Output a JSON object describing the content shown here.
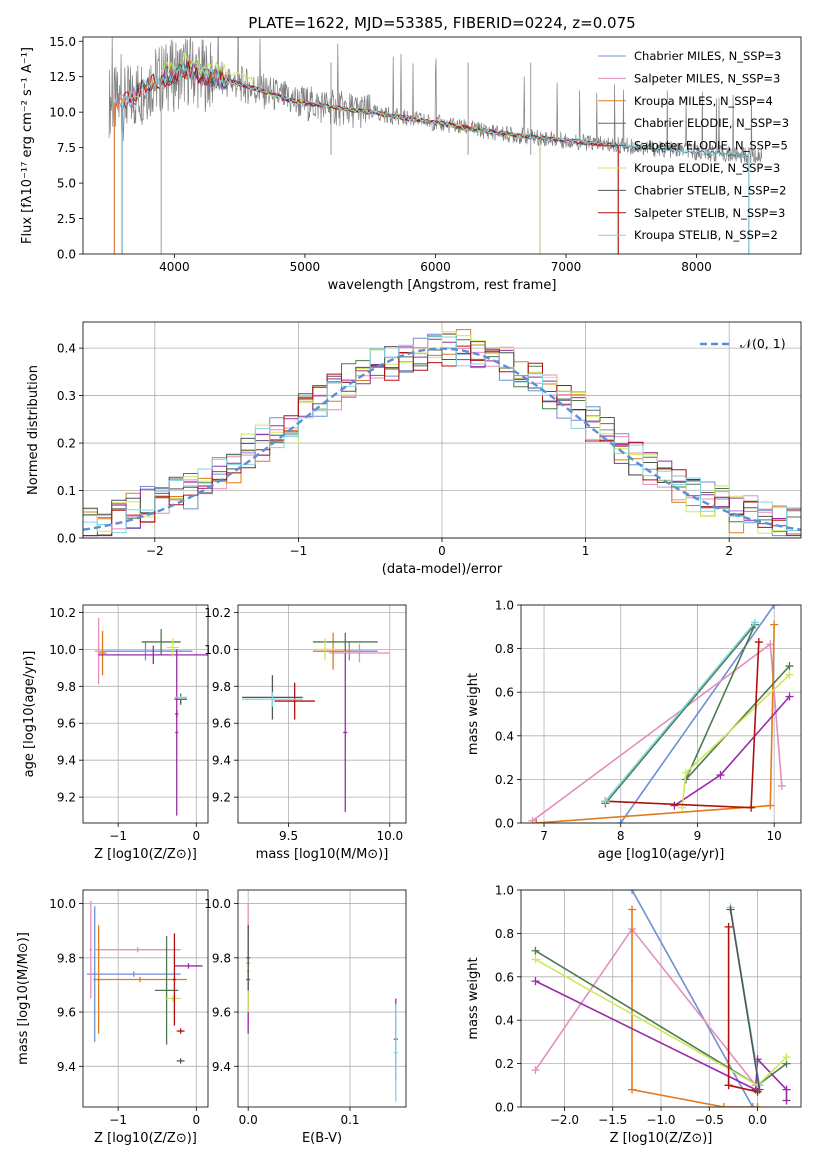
{
  "colors": {
    "chabrier_miles": "#6f8ed8",
    "salpeter_miles": "#e48fbe",
    "kroupa_miles": "#e07b1e",
    "chabrier_elodie": "#4f7a4f",
    "salpeter_elodie": "#9a2aa8",
    "kroupa_elodie": "#cde85a",
    "chabrier_stelib": "#555555",
    "salpeter_stelib": "#b01010",
    "kroupa_stelib": "#7fd6e0",
    "gauss": "#5b8fd6",
    "spectrum": "#808080"
  },
  "chart_data": [
    {
      "id": "spectrum",
      "type": "line",
      "title": "PLATE=1622, MJD=53385, FIBERID=0224, z=0.075",
      "xlabel": "wavelength [Angstrom, rest frame]",
      "ylabel": "Flux [fλ10⁻¹⁷ erg cm⁻² s⁻¹ A⁻¹]",
      "xlim": [
        3300,
        8800
      ],
      "ylim": [
        0,
        15.3
      ],
      "xticks": [
        "4000",
        "5000",
        "6000",
        "7000",
        "8000"
      ],
      "yticks": [
        "0.0",
        "2.5",
        "5.0",
        "7.5",
        "10.0",
        "12.5",
        "15.0"
      ],
      "legend_position": "upper-right",
      "legend": [
        "Chabrier MILES, N_SSP=3",
        "Salpeter MILES, N_SSP=3",
        "Kroupa MILES, N_SSP=4",
        "Chabrier ELODIE, N_SSP=3",
        "Salpeter ELODIE, N_SSP=5",
        "Kroupa ELODIE, N_SSP=3",
        "Chabrier STELIB, N_SSP=2",
        "Salpeter STELIB, N_SSP=3",
        "Kroupa STELIB, N_SSP=2"
      ],
      "continuum": {
        "x": [
          3500,
          3600,
          3700,
          3800,
          3900,
          4000,
          4100,
          4200,
          4300,
          4500,
          4700,
          4900,
          5100,
          5300,
          5500,
          5700,
          5900,
          6100,
          6300,
          6500,
          6700,
          6900,
          7100,
          7300,
          7500,
          7700,
          7900,
          8100,
          8300,
          8500,
          8700
        ],
        "y": [
          10.8,
          10.5,
          11.2,
          12.0,
          12.4,
          12.6,
          13.0,
          12.7,
          12.4,
          12.0,
          11.4,
          10.8,
          10.5,
          10.2,
          10.0,
          9.7,
          9.4,
          9.1,
          8.8,
          8.5,
          8.3,
          8.1,
          7.9,
          7.7,
          7.6,
          7.4,
          7.3,
          7.1,
          7.0,
          6.9,
          6.8
        ]
      }
    },
    {
      "id": "residuals",
      "type": "line",
      "xlabel": "(data-model)/error",
      "ylabel": "Normed distribution",
      "xlim": [
        -2.5,
        2.5
      ],
      "ylim": [
        0,
        0.455
      ],
      "xticks": [
        "−2",
        "−1",
        "0",
        "1",
        "2"
      ],
      "yticks": [
        "0.0",
        "0.1",
        "0.2",
        "0.3",
        "0.4"
      ],
      "gauss_label": "𝒩(0, 1)",
      "bin_edges_start": -2.5,
      "bin_width": 0.1,
      "reference": [
        0.03,
        0.04,
        0.05,
        0.06,
        0.07,
        0.08,
        0.09,
        0.1,
        0.12,
        0.14,
        0.15,
        0.18,
        0.2,
        0.22,
        0.23,
        0.27,
        0.29,
        0.31,
        0.33,
        0.34,
        0.36,
        0.37,
        0.38,
        0.39,
        0.39,
        0.4,
        0.4,
        0.39,
        0.38,
        0.37,
        0.35,
        0.33,
        0.31,
        0.29,
        0.27,
        0.24,
        0.22,
        0.19,
        0.17,
        0.15,
        0.13,
        0.11,
        0.09,
        0.08,
        0.07,
        0.05,
        0.05,
        0.04,
        0.03,
        0.03
      ]
    },
    {
      "id": "age-vs-Z",
      "type": "scatter",
      "xlabel": "Z [log10(Z/Z⊙)]",
      "ylabel": "age  [log10(age/yr)]",
      "xlim": [
        -1.45,
        0.15
      ],
      "ylim": [
        9.06,
        10.24
      ],
      "xticks": [
        "−1",
        "0"
      ],
      "yticks": [
        "9.2",
        "9.4",
        "9.6",
        "9.8",
        "10.0",
        "10.2"
      ],
      "points": [
        {
          "x": -0.65,
          "y": 9.99,
          "xerr": 0.6,
          "yerr": 0.05,
          "c": "chabrier_miles"
        },
        {
          "x": -1.25,
          "y": 9.99,
          "xerr": 0.05,
          "yerr": 0.18,
          "c": "salpeter_miles"
        },
        {
          "x": -1.2,
          "y": 9.98,
          "xerr": 0.05,
          "yerr": 0.12,
          "c": "kroupa_miles"
        },
        {
          "x": -0.45,
          "y": 10.04,
          "xerr": 0.25,
          "yerr": 0.07,
          "c": "chabrier_elodie"
        },
        {
          "x": -0.55,
          "y": 9.97,
          "xerr": 0.7,
          "yerr": 0.05,
          "c": "salpeter_elodie"
        },
        {
          "x": -0.3,
          "y": 10.01,
          "xerr": 0.08,
          "yerr": 0.05,
          "c": "kroupa_elodie"
        },
        {
          "x": -0.2,
          "y": 9.73,
          "xerr": 0.08,
          "yerr": 0.03,
          "c": "chabrier_stelib"
        },
        {
          "x": -0.25,
          "y": 9.65,
          "xerr": 0.02,
          "yerr": 0.02,
          "c": "salpeter_stelib"
        },
        {
          "x": -0.25,
          "y": 9.55,
          "xerr": 0.02,
          "yerr": 0.45,
          "c": "salpeter_elodie"
        },
        {
          "x": -0.2,
          "y": 9.74,
          "xerr": 0.08,
          "yerr": 0.01,
          "c": "kroupa_stelib"
        }
      ]
    },
    {
      "id": "age-vs-mass",
      "type": "scatter",
      "xlabel": "mass [log10(M/M⊙)]",
      "ylabel": "",
      "xlim": [
        9.25,
        10.08
      ],
      "ylim": [
        9.06,
        10.24
      ],
      "xticks": [
        "9.5",
        "10.0"
      ],
      "yticks": [
        "9.2",
        "9.4",
        "9.6",
        "9.8",
        "10.0",
        "10.2"
      ],
      "points": [
        {
          "x": 9.8,
          "y": 9.99,
          "xerr": 0.14,
          "yerr": 0.05,
          "c": "chabrier_miles"
        },
        {
          "x": 9.85,
          "y": 9.98,
          "xerr": 0.15,
          "yerr": 0.05,
          "c": "salpeter_miles"
        },
        {
          "x": 9.72,
          "y": 9.99,
          "xerr": 0.1,
          "yerr": 0.1,
          "c": "kroupa_miles"
        },
        {
          "x": 9.78,
          "y": 10.04,
          "xerr": 0.16,
          "yerr": 0.05,
          "c": "chabrier_elodie"
        },
        {
          "x": 9.78,
          "y": 9.55,
          "xerr": 0.01,
          "yerr": 0.43,
          "c": "salpeter_elodie"
        },
        {
          "x": 9.68,
          "y": 10.0,
          "xerr": 0.05,
          "yerr": 0.06,
          "c": "kroupa_elodie"
        },
        {
          "x": 9.42,
          "y": 9.74,
          "xerr": 0.15,
          "yerr": 0.12,
          "c": "chabrier_stelib"
        },
        {
          "x": 9.53,
          "y": 9.72,
          "xerr": 0.1,
          "yerr": 0.1,
          "c": "salpeter_stelib"
        },
        {
          "x": 9.42,
          "y": 9.73,
          "xerr": 0.15,
          "yerr": 0.04,
          "c": "kroupa_stelib"
        }
      ]
    },
    {
      "id": "weight-vs-age",
      "type": "line",
      "xlabel": "age  [log10(age/yr)]",
      "ylabel": "mass weight",
      "xlim": [
        6.7,
        10.35
      ],
      "ylim": [
        0,
        1.0
      ],
      "xticks": [
        "7",
        "8",
        "9",
        "10"
      ],
      "yticks": [
        "0.0",
        "0.2",
        "0.4",
        "0.6",
        "0.8",
        "1.0"
      ],
      "series": [
        {
          "c": "chabrier_miles",
          "x": [
            8.0,
            10.0
          ],
          "y": [
            0.0,
            1.0
          ]
        },
        {
          "c": "salpeter_miles",
          "x": [
            6.85,
            9.95,
            10.1
          ],
          "y": [
            0.01,
            0.82,
            0.17
          ]
        },
        {
          "c": "kroupa_miles",
          "x": [
            6.9,
            9.95,
            10.0
          ],
          "y": [
            0.0,
            0.08,
            0.91
          ]
        },
        {
          "c": "chabrier_elodie",
          "x": [
            7.8,
            9.75,
            8.85,
            10.2
          ],
          "y": [
            0.09,
            0.91,
            0.2,
            0.72
          ]
        },
        {
          "c": "salpeter_elodie",
          "x": [
            8.7,
            9.3,
            10.2
          ],
          "y": [
            0.08,
            0.22,
            0.58
          ]
        },
        {
          "c": "kroupa_elodie",
          "x": [
            8.8,
            8.85,
            10.2
          ],
          "y": [
            0.07,
            0.23,
            0.68
          ]
        },
        {
          "c": "salpeter_stelib",
          "x": [
            7.8,
            9.7,
            9.8
          ],
          "y": [
            0.1,
            0.07,
            0.83
          ]
        },
        {
          "c": "kroupa_stelib",
          "x": [
            7.8,
            9.75
          ],
          "y": [
            0.1,
            0.92
          ]
        }
      ]
    },
    {
      "id": "mass-vs-Z",
      "type": "scatter",
      "xlabel": "Z [log10(Z/Z⊙)]",
      "ylabel": "mass [log10(M/M⊙)]",
      "xlim": [
        -1.45,
        0.15
      ],
      "ylim": [
        9.25,
        10.05
      ],
      "xticks": [
        "−1",
        "0"
      ],
      "yticks": [
        "9.4",
        "9.6",
        "9.8",
        "10.0"
      ],
      "points": [
        {
          "x": -0.8,
          "y": 9.74,
          "xerr": 0.6,
          "yerr": 0.01,
          "c": "chabrier_miles"
        },
        {
          "x": -1.3,
          "y": 9.74,
          "xerr": 0.02,
          "yerr": 0.25,
          "c": "chabrier_miles"
        },
        {
          "x": -0.75,
          "y": 9.83,
          "xerr": 0.55,
          "yerr": 0.01,
          "c": "salpeter_miles"
        },
        {
          "x": -1.35,
          "y": 9.83,
          "xerr": 0.02,
          "yerr": 0.18,
          "c": "salpeter_miles"
        },
        {
          "x": -0.72,
          "y": 9.72,
          "xerr": 0.6,
          "yerr": 0.01,
          "c": "kroupa_miles"
        },
        {
          "x": -1.25,
          "y": 9.72,
          "xerr": 0.02,
          "yerr": 0.2,
          "c": "kroupa_miles"
        },
        {
          "x": -0.38,
          "y": 9.68,
          "xerr": 0.15,
          "yerr": 0.2,
          "c": "chabrier_elodie"
        },
        {
          "x": -0.1,
          "y": 9.77,
          "xerr": 0.18,
          "yerr": 0.01,
          "c": "salpeter_elodie"
        },
        {
          "x": -0.3,
          "y": 9.65,
          "xerr": 0.1,
          "yerr": 0.01,
          "c": "kroupa_elodie"
        },
        {
          "x": -0.2,
          "y": 9.42,
          "xerr": 0.05,
          "yerr": 0.01,
          "c": "chabrier_stelib"
        },
        {
          "x": -0.2,
          "y": 9.53,
          "xerr": 0.05,
          "yerr": 0.01,
          "c": "salpeter_stelib"
        },
        {
          "x": -0.28,
          "y": 9.72,
          "xerr": 0.02,
          "yerr": 0.17,
          "c": "salpeter_stelib"
        }
      ]
    },
    {
      "id": "mass-vs-EBV",
      "type": "scatter",
      "xlabel": "E(B-V)",
      "ylabel": "",
      "xlim": [
        -0.01,
        0.155
      ],
      "ylim": [
        9.25,
        10.05
      ],
      "xticks": [
        "0.0",
        "0.1"
      ],
      "yticks": [
        "9.4",
        "9.6",
        "9.8",
        "10.0"
      ],
      "points": [
        {
          "x": 0.0,
          "y": 9.78,
          "xerr": 0.002,
          "yerr": 0.22,
          "c": "salpeter_miles"
        },
        {
          "x": 0.0,
          "y": 9.72,
          "xerr": 0.002,
          "yerr": 0.2,
          "c": "salpeter_elodie"
        },
        {
          "x": 0.0,
          "y": 9.75,
          "xerr": 0.002,
          "yerr": 0.15,
          "c": "kroupa_elodie"
        },
        {
          "x": 0.0,
          "y": 9.8,
          "xerr": 0.002,
          "yerr": 0.12,
          "c": "chabrier_stelib"
        },
        {
          "x": 0.145,
          "y": 9.5,
          "xerr": 0.002,
          "yerr": 0.15,
          "c": "salpeter_elodie"
        },
        {
          "x": 0.145,
          "y": 9.45,
          "xerr": 0.002,
          "yerr": 0.18,
          "c": "kroupa_stelib"
        }
      ]
    },
    {
      "id": "weight-vs-Z",
      "type": "line",
      "xlabel": "Z [log10(Z/Z⊙)]",
      "ylabel": "mass weight",
      "xlim": [
        -2.45,
        0.45
      ],
      "ylim": [
        0,
        1.0
      ],
      "xticks": [
        "−2.0",
        "−1.5",
        "−1.0",
        "−0.5",
        "0.0"
      ],
      "yticks": [
        "0.0",
        "0.2",
        "0.4",
        "0.6",
        "0.8",
        "1.0"
      ],
      "series": [
        {
          "c": "chabrier_miles",
          "x": [
            -1.3,
            -0.05
          ],
          "y": [
            1.0,
            0.0
          ]
        },
        {
          "c": "salpeter_miles",
          "x": [
            -2.3,
            -1.3,
            -0.02
          ],
          "y": [
            0.17,
            0.82,
            0.1
          ]
        },
        {
          "c": "kroupa_miles",
          "x": [
            -1.3,
            -1.3,
            -0.35,
            0.0
          ],
          "y": [
            0.91,
            0.08,
            0.0,
            0.0
          ]
        },
        {
          "c": "chabrier_elodie",
          "x": [
            -2.3,
            0.0,
            0.3
          ],
          "y": [
            0.72,
            0.1,
            0.2
          ]
        },
        {
          "c": "salpeter_elodie",
          "x": [
            -2.3,
            -0.02,
            0.0,
            0.3,
            0.3
          ],
          "y": [
            0.58,
            0.08,
            0.22,
            0.08,
            0.03
          ]
        },
        {
          "c": "kroupa_elodie",
          "x": [
            -2.3,
            0.0,
            0.3
          ],
          "y": [
            0.68,
            0.1,
            0.23
          ]
        },
        {
          "c": "salpeter_stelib",
          "x": [
            -0.3,
            -0.3,
            0.0
          ],
          "y": [
            0.83,
            0.1,
            0.07
          ]
        },
        {
          "c": "kroupa_stelib",
          "x": [
            -0.28,
            0.02
          ],
          "y": [
            0.92,
            0.1
          ]
        },
        {
          "c": "chabrier_stelib",
          "x": [
            -0.28,
            0.02
          ],
          "y": [
            0.91,
            0.08
          ]
        }
      ]
    }
  ]
}
